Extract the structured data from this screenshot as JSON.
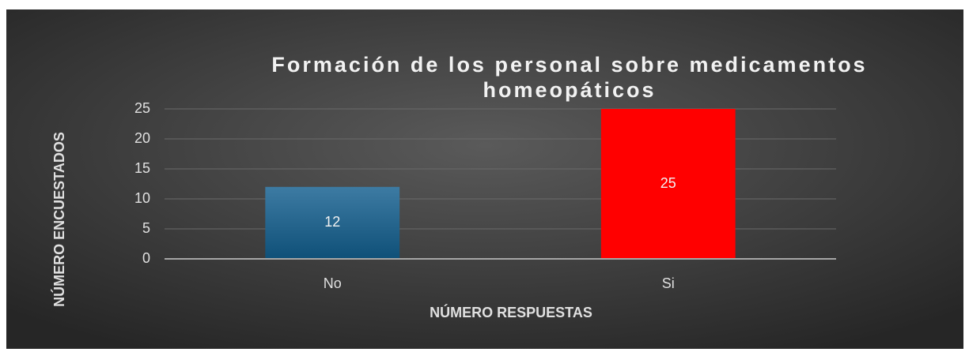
{
  "chart_data": {
    "type": "bar",
    "title": "Formación de los personal sobre medicamentos homeopáticos",
    "x_label": "NÚMERO RESPUESTAS",
    "y_label": "NÚMERO ENCUESTADOS",
    "categories": [
      "No",
      "Si"
    ],
    "values": [
      12,
      25
    ],
    "colors": [
      "#1f5f86",
      "#ff0000"
    ],
    "ylim": [
      0,
      25
    ],
    "yticks": [
      0,
      5,
      10,
      15,
      20,
      25
    ],
    "grid": true
  }
}
